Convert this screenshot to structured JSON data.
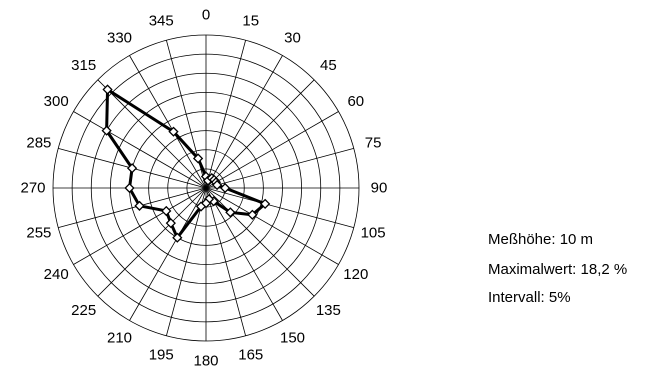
{
  "chart_data": {
    "type": "radar",
    "title": "",
    "directions": [
      0,
      15,
      30,
      45,
      60,
      75,
      90,
      105,
      120,
      135,
      150,
      165,
      180,
      195,
      210,
      225,
      240,
      255,
      270,
      285,
      300,
      315,
      330,
      345
    ],
    "direction_labels": [
      "0",
      "15",
      "30",
      "45",
      "60",
      "75",
      "90",
      "105",
      "120",
      "135",
      "150",
      "165",
      "180",
      "195",
      "210",
      "225",
      "240",
      "255",
      "270",
      "285",
      "300",
      "315",
      "330",
      "345"
    ],
    "values": [
      1.5,
      1.0,
      1.5,
      1.5,
      1.5,
      1.5,
      2.5,
      8.0,
      7.0,
      4.5,
      2.0,
      1.5,
      2.0,
      2.5,
      7.5,
      6.5,
      6.0,
      9.0,
      10.0,
      10.0,
      15.0,
      18.2,
      8.5,
      4.0
    ],
    "r_max": 20,
    "ring_interval": 2.5,
    "grid": true,
    "line_color": "#000000",
    "marker": "diamond-open"
  },
  "info": {
    "measurement_height": "Meßhöhe: 10 m",
    "max_value": "Maximalwert: 18,2 %",
    "interval": "Intervall: 5%"
  }
}
